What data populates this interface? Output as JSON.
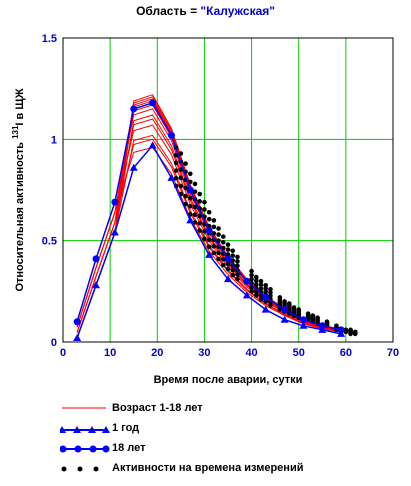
{
  "title": {
    "prefix": "Область = ",
    "region": "\"Калужская\""
  },
  "chart_data": {
    "type": "line",
    "xlabel": "Время после аварии, сутки",
    "ylabel_prefix": "Относительная активность ",
    "ylabel_sup": "131",
    "ylabel_suffix": "I в ЩЖ",
    "xlim": [
      0,
      70
    ],
    "ylim": [
      0,
      1.5
    ],
    "xticks": [
      0,
      10,
      20,
      30,
      40,
      50,
      60,
      70
    ],
    "yticks": [
      0,
      0.5,
      1,
      1.5
    ],
    "ytick_labels": [
      "0",
      "0.5",
      "1",
      "1.5"
    ],
    "grid": true,
    "colors": {
      "age_range": "#ff0000",
      "one_year": "#0000ff",
      "eighteen": "#0000ff",
      "measurements": "#000000",
      "grid": "#00cc00"
    },
    "series": [
      {
        "name": "Возраст 1-18 лет",
        "style": "band",
        "count": 12,
        "peaks": [
          1.22,
          1.21,
          1.2,
          1.19,
          1.17,
          1.15,
          1.12,
          1.1,
          1.07,
          1.02,
          1.0,
          0.96
        ]
      },
      {
        "name": "1 год",
        "style": "triangle",
        "x": [
          3,
          7,
          11,
          15,
          19,
          23,
          27,
          31,
          35,
          39,
          43,
          47,
          51,
          55,
          59
        ],
        "y": [
          0.02,
          0.28,
          0.54,
          0.86,
          0.97,
          0.81,
          0.6,
          0.43,
          0.31,
          0.23,
          0.16,
          0.11,
          0.08,
          0.06,
          0.04
        ]
      },
      {
        "name": "18 лет",
        "style": "circle",
        "x": [
          3,
          7,
          11,
          15,
          19,
          23,
          27,
          31,
          35,
          39,
          43,
          47,
          51,
          55,
          59
        ],
        "y": [
          0.1,
          0.41,
          0.69,
          1.15,
          1.18,
          1.02,
          0.75,
          0.55,
          0.41,
          0.3,
          0.22,
          0.16,
          0.11,
          0.08,
          0.06
        ]
      },
      {
        "name": "Активности на времена измерений",
        "style": "dots",
        "x": [
          24,
          25,
          26,
          27,
          28,
          29,
          30,
          31,
          32,
          33,
          34,
          35,
          36,
          37,
          40,
          41,
          42,
          43,
          44,
          46,
          47,
          48,
          49,
          50,
          52,
          53,
          54,
          56,
          58,
          60,
          61,
          62
        ],
        "y_min": [
          0.77,
          0.73,
          0.68,
          0.63,
          0.59,
          0.55,
          0.51,
          0.47,
          0.44,
          0.41,
          0.38,
          0.36,
          0.33,
          0.31,
          0.25,
          0.23,
          0.21,
          0.2,
          0.18,
          0.16,
          0.15,
          0.14,
          0.13,
          0.12,
          0.11,
          0.1,
          0.09,
          0.08,
          0.06,
          0.05,
          0.04,
          0.04
        ],
        "y_max": [
          0.96,
          0.93,
          0.88,
          0.83,
          0.78,
          0.73,
          0.69,
          0.64,
          0.6,
          0.56,
          0.52,
          0.48,
          0.45,
          0.42,
          0.35,
          0.32,
          0.3,
          0.28,
          0.26,
          0.22,
          0.2,
          0.19,
          0.17,
          0.16,
          0.14,
          0.13,
          0.12,
          0.1,
          0.08,
          0.06,
          0.06,
          0.05
        ]
      }
    ]
  }
}
